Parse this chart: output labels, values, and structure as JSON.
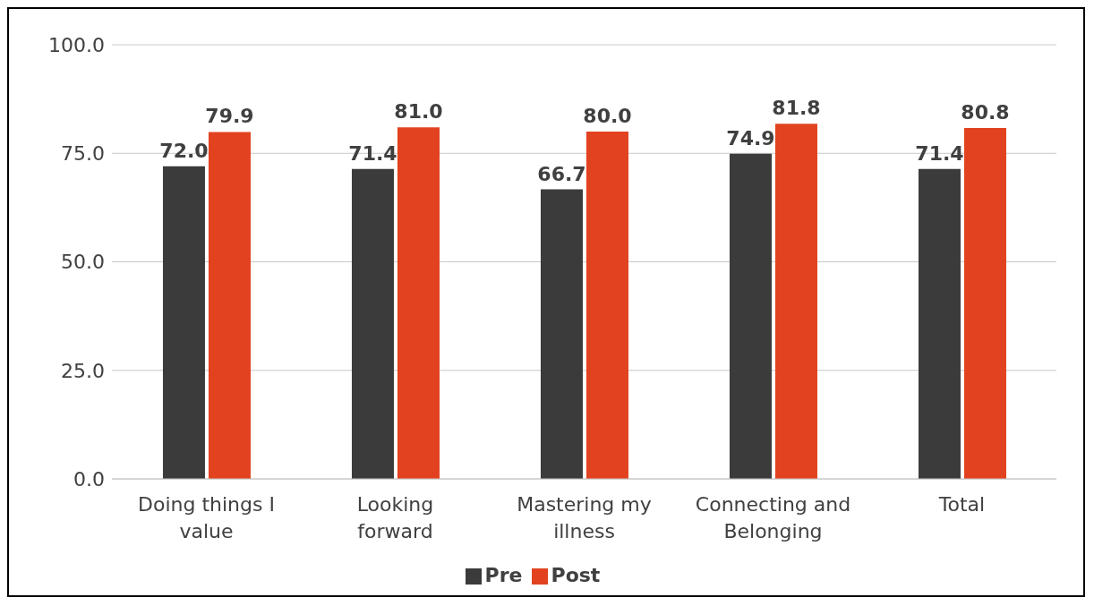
{
  "chart_data": {
    "type": "bar",
    "categories": [
      "Doing things I value",
      "Looking forward",
      "Mastering my illness",
      "Connecting and Belonging",
      "Total"
    ],
    "series": [
      {
        "name": "Pre",
        "color": "#3b3b3b",
        "values": [
          72.0,
          71.4,
          66.7,
          74.9,
          71.4
        ],
        "value_labels": [
          "72.0",
          "71.4",
          "66.7",
          "74.9",
          "71.4"
        ]
      },
      {
        "name": "Post",
        "color": "#e2421f",
        "values": [
          79.9,
          81.0,
          80.0,
          81.8,
          80.8
        ],
        "value_labels": [
          "79.9",
          "81.0",
          "80.0",
          "81.8",
          "80.8"
        ]
      }
    ],
    "ylim": [
      0,
      100
    ],
    "yticks": [
      {
        "value": 0,
        "label": "0.0"
      },
      {
        "value": 25,
        "label": "25.0"
      },
      {
        "value": 50,
        "label": "50.0"
      },
      {
        "value": 75,
        "label": "75.0"
      },
      {
        "value": 100,
        "label": "100.0"
      }
    ],
    "grid": "y",
    "legend": "bottom"
  }
}
